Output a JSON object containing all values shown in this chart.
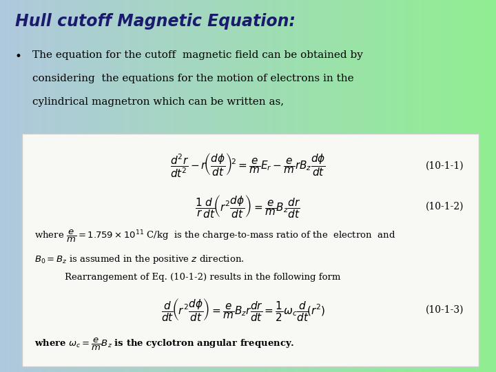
{
  "title": "Hull cutoff Magnetic Equation:",
  "bullet_line1": "The equation for the cutoff  magnetic field can be obtained by",
  "bullet_line2": "considering  the equations for the motion of electrons in the",
  "bullet_line3": "cylindrical magnetron which can be written as,",
  "eq1_label": "(10-1-1)",
  "eq2_label": "(10-1-2)",
  "eq3_label": "(10-1-3)",
  "title_color": "#1a1a6e",
  "box_facecolor": "#f8f8f5",
  "box_edgecolor": "#cccccc",
  "bg_color_left": "#b0c8de",
  "bg_color_right": "#90ee90",
  "title_fontsize": 17,
  "bullet_fontsize": 11,
  "eq_fontsize": 11,
  "body_fontsize": 9.5,
  "label_fontsize": 10
}
